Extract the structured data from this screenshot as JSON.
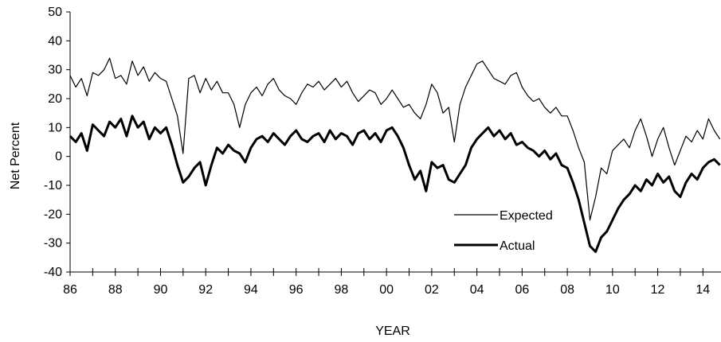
{
  "chart_data": {
    "type": "line",
    "title": "",
    "xlabel": "YEAR",
    "ylabel": "Net Percent",
    "xlim": [
      1986,
      2014.8
    ],
    "ylim": [
      -40,
      50
    ],
    "y_ticks": [
      -40,
      -30,
      -20,
      -10,
      0,
      10,
      20,
      30,
      40,
      50
    ],
    "x_tick_labels": [
      {
        "x": 1986,
        "label": "86"
      },
      {
        "x": 1988,
        "label": "88"
      },
      {
        "x": 1990,
        "label": "90"
      },
      {
        "x": 1992,
        "label": "92"
      },
      {
        "x": 1994,
        "label": "94"
      },
      {
        "x": 1996,
        "label": "96"
      },
      {
        "x": 1998,
        "label": "98"
      },
      {
        "x": 2000,
        "label": "00"
      },
      {
        "x": 2002,
        "label": "02"
      },
      {
        "x": 2004,
        "label": "04"
      },
      {
        "x": 2006,
        "label": "06"
      },
      {
        "x": 2008,
        "label": "08"
      },
      {
        "x": 2010,
        "label": "10"
      },
      {
        "x": 2012,
        "label": "12"
      },
      {
        "x": 2014,
        "label": "14"
      }
    ],
    "grid": false,
    "legend_position": "lower-center",
    "series": [
      {
        "name": "Expected",
        "style": "thin",
        "color": "#000000",
        "points": [
          [
            1986.0,
            28
          ],
          [
            1986.25,
            24
          ],
          [
            1986.5,
            27
          ],
          [
            1986.75,
            21
          ],
          [
            1987.0,
            29
          ],
          [
            1987.25,
            28
          ],
          [
            1987.5,
            30
          ],
          [
            1987.75,
            34
          ],
          [
            1988.0,
            27
          ],
          [
            1988.25,
            28
          ],
          [
            1988.5,
            25
          ],
          [
            1988.75,
            33
          ],
          [
            1989.0,
            28
          ],
          [
            1989.25,
            31
          ],
          [
            1989.5,
            26
          ],
          [
            1989.75,
            29
          ],
          [
            1990.0,
            27
          ],
          [
            1990.25,
            26
          ],
          [
            1990.5,
            20
          ],
          [
            1990.75,
            14
          ],
          [
            1991.0,
            1
          ],
          [
            1991.25,
            27
          ],
          [
            1991.5,
            28
          ],
          [
            1991.75,
            22
          ],
          [
            1992.0,
            27
          ],
          [
            1992.25,
            23
          ],
          [
            1992.5,
            26
          ],
          [
            1992.75,
            22
          ],
          [
            1993.0,
            22
          ],
          [
            1993.25,
            18
          ],
          [
            1993.5,
            10
          ],
          [
            1993.75,
            18
          ],
          [
            1994.0,
            22
          ],
          [
            1994.25,
            24
          ],
          [
            1994.5,
            21
          ],
          [
            1994.75,
            25
          ],
          [
            1995.0,
            27
          ],
          [
            1995.25,
            23
          ],
          [
            1995.5,
            21
          ],
          [
            1995.75,
            20
          ],
          [
            1996.0,
            18
          ],
          [
            1996.25,
            22
          ],
          [
            1996.5,
            25
          ],
          [
            1996.75,
            24
          ],
          [
            1997.0,
            26
          ],
          [
            1997.25,
            23
          ],
          [
            1997.5,
            25
          ],
          [
            1997.75,
            27
          ],
          [
            1998.0,
            24
          ],
          [
            1998.25,
            26
          ],
          [
            1998.5,
            22
          ],
          [
            1998.75,
            19
          ],
          [
            1999.0,
            21
          ],
          [
            1999.25,
            23
          ],
          [
            1999.5,
            22
          ],
          [
            1999.75,
            18
          ],
          [
            2000.0,
            20
          ],
          [
            2000.25,
            23
          ],
          [
            2000.5,
            20
          ],
          [
            2000.75,
            17
          ],
          [
            2001.0,
            18
          ],
          [
            2001.25,
            15
          ],
          [
            2001.5,
            13
          ],
          [
            2001.75,
            18
          ],
          [
            2002.0,
            25
          ],
          [
            2002.25,
            22
          ],
          [
            2002.5,
            15
          ],
          [
            2002.75,
            17
          ],
          [
            2003.0,
            5
          ],
          [
            2003.25,
            18
          ],
          [
            2003.5,
            24
          ],
          [
            2003.75,
            28
          ],
          [
            2004.0,
            32
          ],
          [
            2004.25,
            33
          ],
          [
            2004.5,
            30
          ],
          [
            2004.75,
            27
          ],
          [
            2005.0,
            26
          ],
          [
            2005.25,
            25
          ],
          [
            2005.5,
            28
          ],
          [
            2005.75,
            29
          ],
          [
            2006.0,
            24
          ],
          [
            2006.25,
            21
          ],
          [
            2006.5,
            19
          ],
          [
            2006.75,
            20
          ],
          [
            2007.0,
            17
          ],
          [
            2007.25,
            15
          ],
          [
            2007.5,
            17
          ],
          [
            2007.75,
            14
          ],
          [
            2008.0,
            14
          ],
          [
            2008.25,
            9
          ],
          [
            2008.5,
            3
          ],
          [
            2008.75,
            -2
          ],
          [
            2009.0,
            -22
          ],
          [
            2009.25,
            -14
          ],
          [
            2009.5,
            -4
          ],
          [
            2009.75,
            -6
          ],
          [
            2010.0,
            2
          ],
          [
            2010.25,
            4
          ],
          [
            2010.5,
            6
          ],
          [
            2010.75,
            3
          ],
          [
            2011.0,
            9
          ],
          [
            2011.25,
            13
          ],
          [
            2011.5,
            7
          ],
          [
            2011.75,
            0
          ],
          [
            2012.0,
            6
          ],
          [
            2012.25,
            10
          ],
          [
            2012.5,
            3
          ],
          [
            2012.75,
            -3
          ],
          [
            2013.0,
            2
          ],
          [
            2013.25,
            7
          ],
          [
            2013.5,
            5
          ],
          [
            2013.75,
            9
          ],
          [
            2014.0,
            6
          ],
          [
            2014.25,
            13
          ],
          [
            2014.5,
            9
          ],
          [
            2014.75,
            6
          ]
        ]
      },
      {
        "name": "Actual",
        "style": "thick",
        "color": "#000000",
        "points": [
          [
            1986.0,
            7
          ],
          [
            1986.25,
            5
          ],
          [
            1986.5,
            8
          ],
          [
            1986.75,
            2
          ],
          [
            1987.0,
            11
          ],
          [
            1987.25,
            9
          ],
          [
            1987.5,
            7
          ],
          [
            1987.75,
            12
          ],
          [
            1988.0,
            10
          ],
          [
            1988.25,
            13
          ],
          [
            1988.5,
            7
          ],
          [
            1988.75,
            14
          ],
          [
            1989.0,
            10
          ],
          [
            1989.25,
            12
          ],
          [
            1989.5,
            6
          ],
          [
            1989.75,
            10
          ],
          [
            1990.0,
            8
          ],
          [
            1990.25,
            10
          ],
          [
            1990.5,
            4
          ],
          [
            1990.75,
            -3
          ],
          [
            1991.0,
            -9
          ],
          [
            1991.25,
            -7
          ],
          [
            1991.5,
            -4
          ],
          [
            1991.75,
            -2
          ],
          [
            1992.0,
            -10
          ],
          [
            1992.25,
            -3
          ],
          [
            1992.5,
            3
          ],
          [
            1992.75,
            1
          ],
          [
            1993.0,
            4
          ],
          [
            1993.25,
            2
          ],
          [
            1993.5,
            1
          ],
          [
            1993.75,
            -2
          ],
          [
            1994.0,
            3
          ],
          [
            1994.25,
            6
          ],
          [
            1994.5,
            7
          ],
          [
            1994.75,
            5
          ],
          [
            1995.0,
            8
          ],
          [
            1995.25,
            6
          ],
          [
            1995.5,
            4
          ],
          [
            1995.75,
            7
          ],
          [
            1996.0,
            9
          ],
          [
            1996.25,
            6
          ],
          [
            1996.5,
            5
          ],
          [
            1996.75,
            7
          ],
          [
            1997.0,
            8
          ],
          [
            1997.25,
            5
          ],
          [
            1997.5,
            9
          ],
          [
            1997.75,
            6
          ],
          [
            1998.0,
            8
          ],
          [
            1998.25,
            7
          ],
          [
            1998.5,
            4
          ],
          [
            1998.75,
            8
          ],
          [
            1999.0,
            9
          ],
          [
            1999.25,
            6
          ],
          [
            1999.5,
            8
          ],
          [
            1999.75,
            5
          ],
          [
            2000.0,
            9
          ],
          [
            2000.25,
            10
          ],
          [
            2000.5,
            7
          ],
          [
            2000.75,
            3
          ],
          [
            2001.0,
            -3
          ],
          [
            2001.25,
            -8
          ],
          [
            2001.5,
            -5
          ],
          [
            2001.75,
            -12
          ],
          [
            2002.0,
            -2
          ],
          [
            2002.25,
            -4
          ],
          [
            2002.5,
            -3
          ],
          [
            2002.75,
            -8
          ],
          [
            2003.0,
            -9
          ],
          [
            2003.25,
            -6
          ],
          [
            2003.5,
            -3
          ],
          [
            2003.75,
            3
          ],
          [
            2004.0,
            6
          ],
          [
            2004.25,
            8
          ],
          [
            2004.5,
            10
          ],
          [
            2004.75,
            7
          ],
          [
            2005.0,
            9
          ],
          [
            2005.25,
            6
          ],
          [
            2005.5,
            8
          ],
          [
            2005.75,
            4
          ],
          [
            2006.0,
            5
          ],
          [
            2006.25,
            3
          ],
          [
            2006.5,
            2
          ],
          [
            2006.75,
            0
          ],
          [
            2007.0,
            2
          ],
          [
            2007.25,
            -1
          ],
          [
            2007.5,
            1
          ],
          [
            2007.75,
            -3
          ],
          [
            2008.0,
            -4
          ],
          [
            2008.25,
            -9
          ],
          [
            2008.5,
            -15
          ],
          [
            2008.75,
            -23
          ],
          [
            2009.0,
            -31
          ],
          [
            2009.25,
            -33
          ],
          [
            2009.5,
            -28
          ],
          [
            2009.75,
            -26
          ],
          [
            2010.0,
            -22
          ],
          [
            2010.25,
            -18
          ],
          [
            2010.5,
            -15
          ],
          [
            2010.75,
            -13
          ],
          [
            2011.0,
            -10
          ],
          [
            2011.25,
            -12
          ],
          [
            2011.5,
            -8
          ],
          [
            2011.75,
            -10
          ],
          [
            2012.0,
            -6
          ],
          [
            2012.25,
            -9
          ],
          [
            2012.5,
            -7
          ],
          [
            2012.75,
            -12
          ],
          [
            2013.0,
            -14
          ],
          [
            2013.25,
            -9
          ],
          [
            2013.5,
            -6
          ],
          [
            2013.75,
            -8
          ],
          [
            2014.0,
            -4
          ],
          [
            2014.25,
            -2
          ],
          [
            2014.5,
            -1
          ],
          [
            2014.75,
            -3
          ]
        ]
      }
    ]
  }
}
